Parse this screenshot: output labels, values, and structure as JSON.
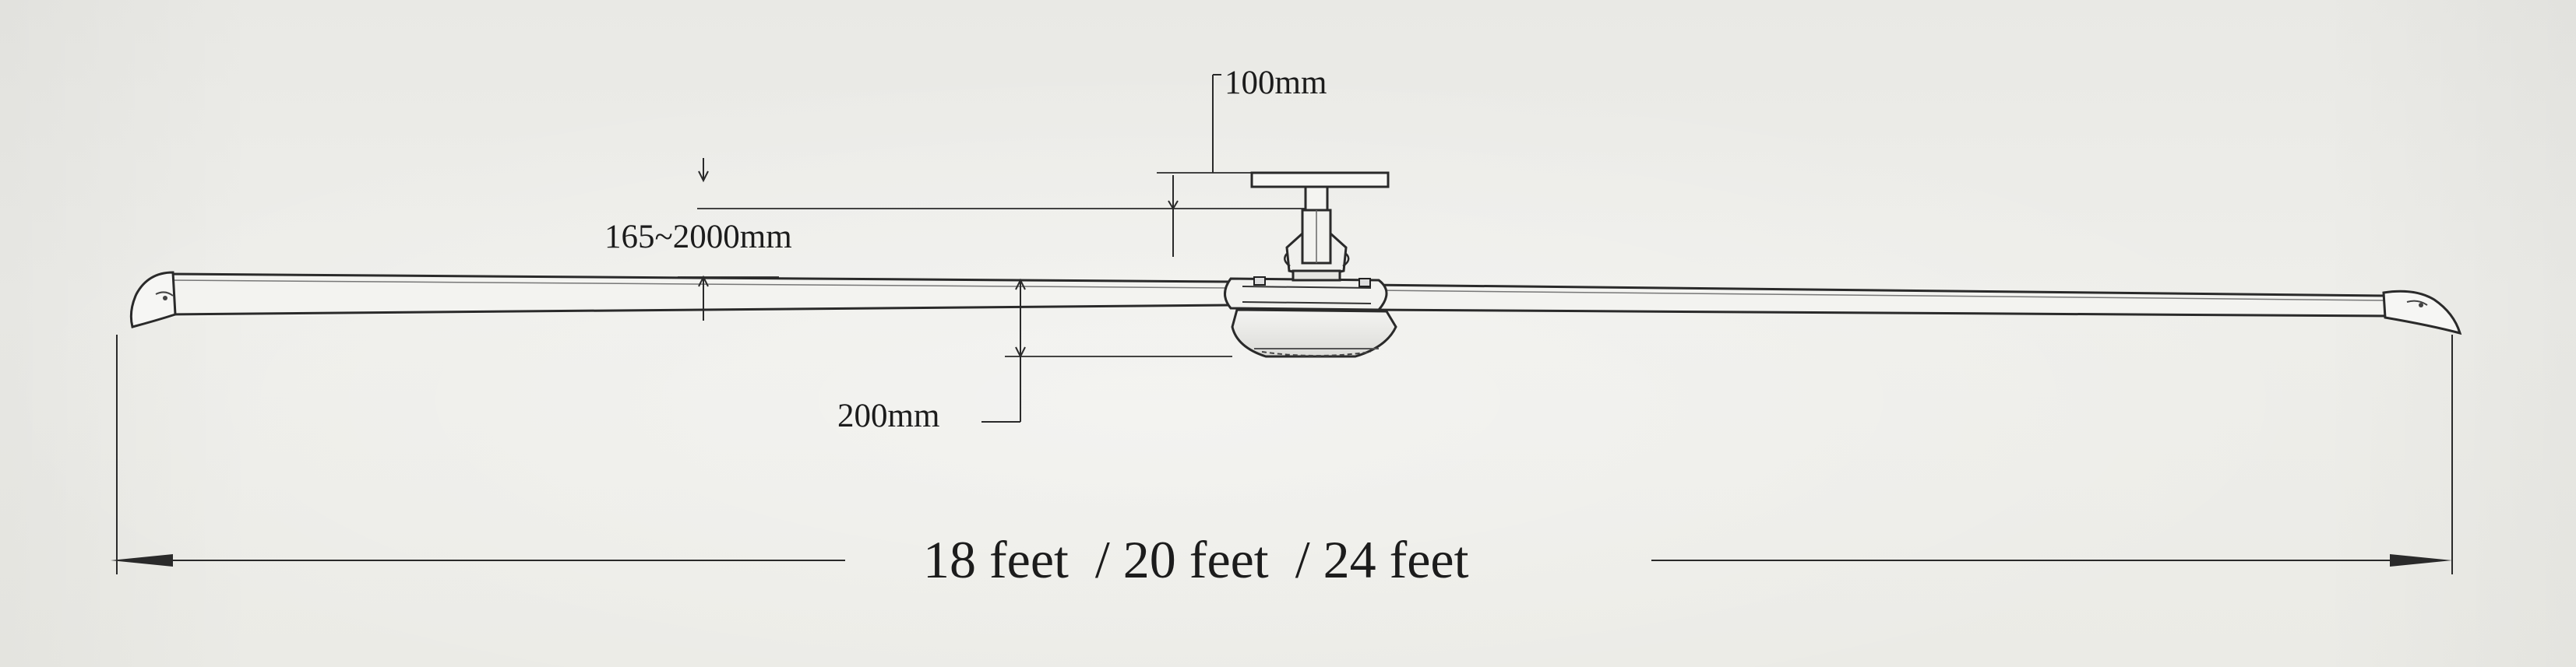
{
  "diagram": {
    "labels": {
      "bracket_height": "100mm",
      "drop_range": "165~2000mm",
      "motor_height": "200mm",
      "span": "18 feet  / 20 feet  / 24 feet"
    }
  }
}
